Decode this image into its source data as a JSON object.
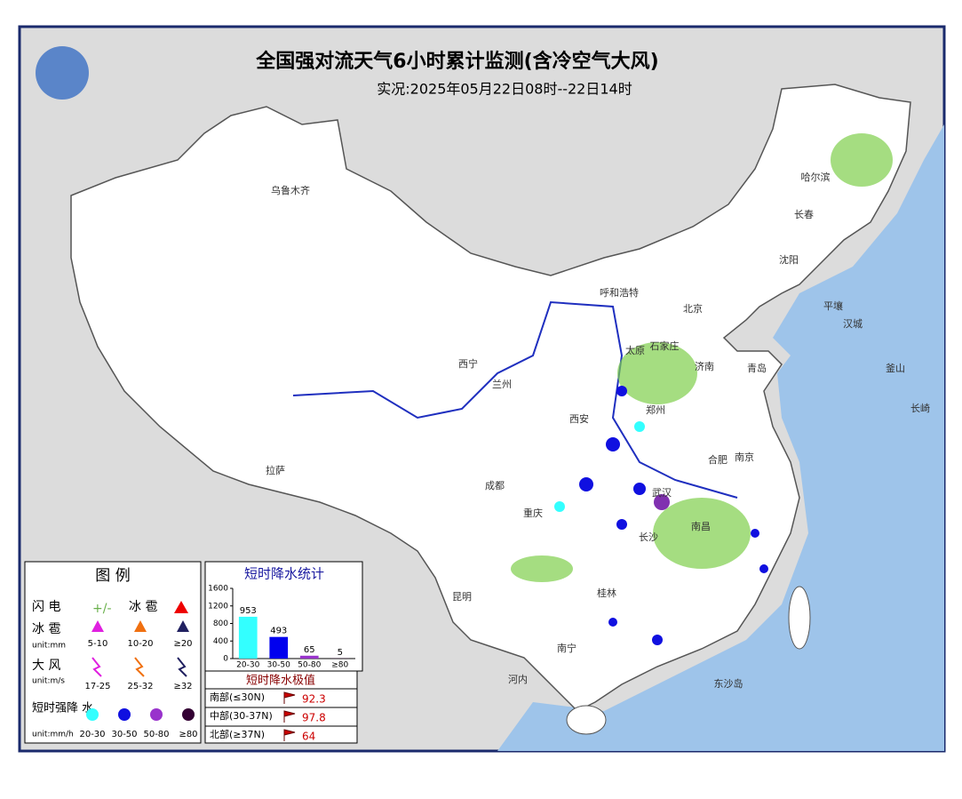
{
  "header": {
    "title": "全国强对流天气6小时累计监测(含冷空气大风)",
    "subtitle": "实况:2025年05月22日08时--22日14时"
  },
  "cities": [
    "乌鲁木齐",
    "拉萨",
    "西宁",
    "兰州",
    "成都",
    "重庆",
    "昆明",
    "南宁",
    "桂林",
    "西安",
    "郑州",
    "武汉",
    "长沙",
    "南昌",
    "合肥",
    "南京",
    "太原",
    "石家庄",
    "北京",
    "济南",
    "青岛",
    "呼和浩特",
    "沈阳",
    "长春",
    "哈尔滨",
    "平壤",
    "汉城",
    "釜山",
    "长崎",
    "河内",
    "东沙岛"
  ],
  "legend": {
    "title": "图 例",
    "lightning": "闪 电",
    "hail_note": "冰 雹",
    "hail": "冰 雹",
    "hail_unit": "unit:mm",
    "hail_levels": [
      "5-10",
      "10-20",
      "≥20"
    ],
    "wind": "大 风",
    "wind_unit": "unit:m/s",
    "wind_levels": [
      "17-25",
      "25-32",
      "≥32"
    ],
    "rain": "短时强降 水",
    "rain_unit": "unit:mm/h",
    "rain_levels": [
      "20-30",
      "30-50",
      "50-80",
      "≥80"
    ]
  },
  "chart_data": {
    "type": "bar",
    "title": "短时降水统计",
    "categories": [
      "20-30",
      "30-50",
      "50-80",
      "≥80"
    ],
    "values": [
      953,
      493,
      65,
      5
    ],
    "colors": [
      "#33ffff",
      "#0000ee",
      "#9933cc",
      "#330033"
    ],
    "ylim": [
      0,
      1600
    ],
    "yticks": [
      0,
      400,
      800,
      1200,
      1600
    ]
  },
  "extremes": {
    "title": "短时降水极值",
    "rows": [
      [
        "南部(≤30N)",
        92.3
      ],
      [
        "中部(30-37N)",
        97.8
      ],
      [
        "北部(≥37N)",
        64
      ]
    ]
  }
}
